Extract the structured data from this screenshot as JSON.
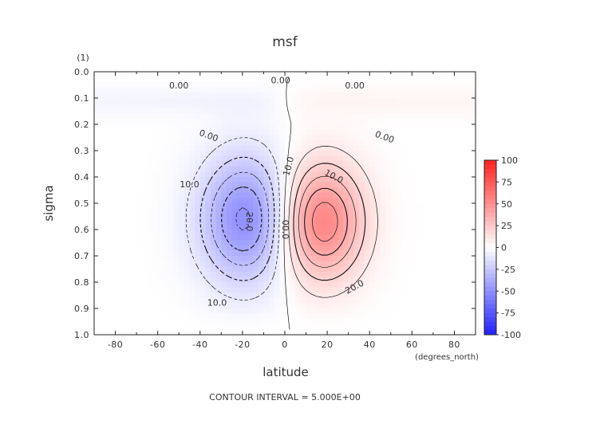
{
  "chart_data": {
    "type": "heatmap",
    "title": "msf",
    "xlabel": "latitude",
    "ylabel": "sigma",
    "x_units": "(degrees_north)",
    "y_units": "(1)",
    "xlim": [
      -90,
      90
    ],
    "ylim": [
      1.0,
      0.0
    ],
    "x_ticks": [
      -80,
      -60,
      -40,
      -20,
      0,
      20,
      40,
      60,
      80
    ],
    "x_tick_labels": [
      "-80",
      "-60",
      "-40",
      "-20",
      "0",
      "20",
      "40",
      "60",
      "80"
    ],
    "y_ticks": [
      0.0,
      0.1,
      0.2,
      0.3,
      0.4,
      0.5,
      0.6,
      0.7,
      0.8,
      0.9,
      1.0
    ],
    "y_tick_labels": [
      "0.0",
      "0.1",
      "0.2",
      "0.3",
      "0.4",
      "0.5",
      "0.6",
      "0.7",
      "0.8",
      "0.9",
      "1.0"
    ],
    "colorbar": {
      "ticks": [
        100,
        75,
        50,
        25,
        0,
        -25,
        -50,
        -75,
        -100
      ],
      "tick_labels": [
        "100",
        "75",
        "50",
        "25",
        "0",
        "-25",
        "-50",
        "-75",
        "-100"
      ],
      "color_max": "#ff2020",
      "color_zero": "#ffffff",
      "color_min": "#2020ff"
    },
    "contour_interval": 5,
    "contour_labels": [
      "0.00",
      "0.00",
      "0.00",
      "0.00",
      "0.00",
      "10.0",
      "20.0",
      "10.0",
      "10.0",
      "20.0",
      "10.0",
      "00.0"
    ],
    "cells": {
      "southern_cell": {
        "center_lat": -18,
        "center_sigma": 0.56,
        "min_value": -27
      },
      "northern_cell": {
        "center_lat": 17,
        "center_sigma": 0.57,
        "max_value": 30
      }
    }
  },
  "footer": {
    "contour_note": "CONTOUR INTERVAL = 5.000E+00"
  }
}
